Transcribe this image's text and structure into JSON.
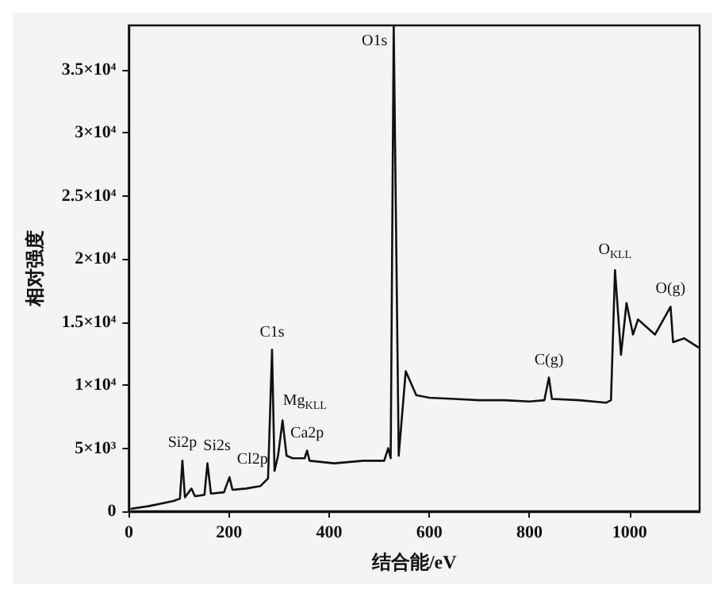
{
  "chart_data": {
    "type": "line",
    "xlabel": "结合能/eV",
    "ylabel": "相对强度",
    "x": [
      5,
      39,
      88,
      102,
      107,
      112,
      125,
      132,
      151,
      157,
      164,
      190,
      201,
      207,
      234,
      263,
      278,
      286,
      291,
      298,
      307,
      315,
      327,
      351,
      356,
      361,
      410,
      468,
      510,
      518,
      523,
      529,
      539,
      553,
      574,
      600,
      650,
      700,
      750,
      800,
      830,
      839,
      845,
      900,
      953,
      963,
      971,
      983,
      994,
      1007,
      1017,
      1051,
      1082,
      1087,
      1109,
      1137
    ],
    "series": [
      {
        "color": "#111111",
        "values": [
          200,
          400,
          800,
          1000,
          4000,
          1100,
          1800,
          1200,
          1300,
          3800,
          1400,
          1500,
          2700,
          1700,
          1800,
          2000,
          2600,
          12800,
          3200,
          4400,
          7200,
          4400,
          4200,
          4200,
          4800,
          4000,
          3800,
          4000,
          4000,
          5000,
          4200,
          38500,
          4400,
          11100,
          9200,
          9000,
          8900,
          8800,
          8800,
          8700,
          8800,
          10600,
          8900,
          8800,
          8600,
          8800,
          19100,
          12400,
          16500,
          14000,
          15200,
          14000,
          16200,
          13400,
          13700,
          13000
        ]
      }
    ],
    "xlim": [
      0,
      1140
    ],
    "xticks": [
      0,
      200,
      400,
      600,
      800,
      1000
    ],
    "ylim": [
      0,
      38500
    ],
    "yticks": [
      0,
      {
        "value": 5000,
        "label": "5×10³"
      },
      {
        "value": 10000,
        "label": "1×10⁴"
      },
      {
        "value": 15000,
        "label": "1.5×10⁴"
      },
      {
        "value": 20000,
        "label": "2×10⁴"
      },
      {
        "value": 25000,
        "label": "2.5×10⁴"
      },
      {
        "value": 30000,
        "label": "3×10⁴"
      },
      {
        "value": 35000,
        "label": "3.5×10⁴"
      }
    ],
    "grid": false,
    "marker": "none",
    "line_style": "solid",
    "annotations": [
      {
        "text": "Si2p",
        "x": 107,
        "y": 4000
      },
      {
        "text": "Si2s",
        "x": 157,
        "y": 3800
      },
      {
        "text": "Cl2p",
        "x": 201,
        "y": 2700
      },
      {
        "text": "C1s",
        "x": 286,
        "y": 12800
      },
      {
        "text": "Mg$_{KLL}$",
        "x": 307,
        "y": 7200
      },
      {
        "text": "Ca2p",
        "x": 356,
        "y": 4800
      },
      {
        "text": "O1s",
        "x": 529,
        "y": 38500
      },
      {
        "text": "C(g)",
        "x": 839,
        "y": 10600
      },
      {
        "text": "O$_{KLL}$",
        "x": 971,
        "y": 19100
      },
      {
        "text": "O(g)",
        "x": 1082,
        "y": 16200
      }
    ]
  }
}
